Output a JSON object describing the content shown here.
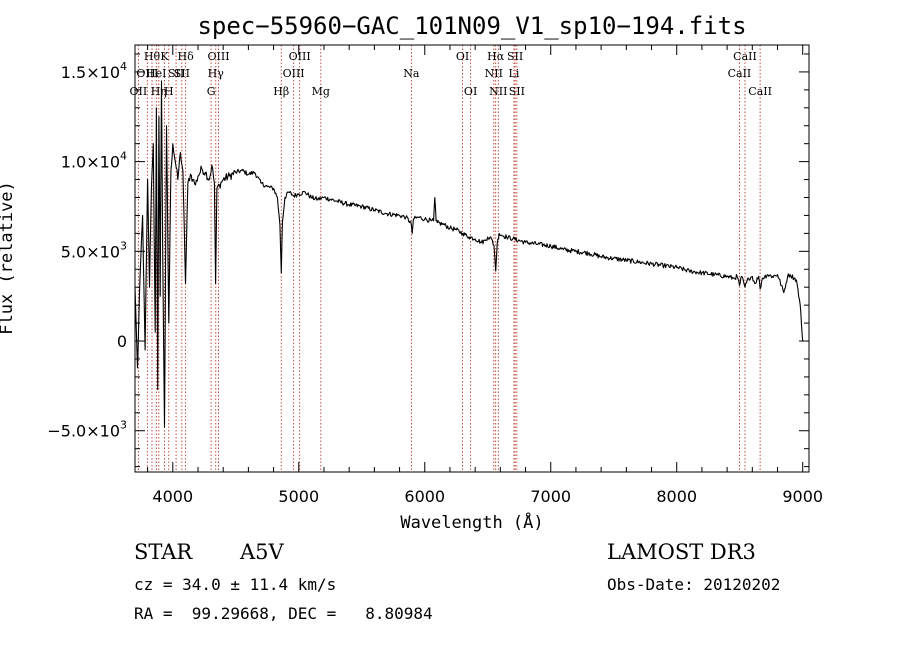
{
  "chart_data": {
    "type": "line",
    "title": "spec−55960−GAC_101N09_V1_sp10−194.fits",
    "xlabel": "Wavelength (Å)",
    "ylabel": "Flux (relative)",
    "xlim": [
      3700,
      9050
    ],
    "ylim": [
      -7300,
      16500
    ],
    "xticks": [
      {
        "value": 4000,
        "label": "4000"
      },
      {
        "value": 5000,
        "label": "5000"
      },
      {
        "value": 6000,
        "label": "6000"
      },
      {
        "value": 7000,
        "label": "7000"
      },
      {
        "value": 8000,
        "label": "8000"
      },
      {
        "value": 9000,
        "label": "9000"
      }
    ],
    "yticks": [
      {
        "value": 15000,
        "mant": "1.5×10",
        "exp": "4"
      },
      {
        "value": 10000,
        "mant": "1.0×10",
        "exp": "4"
      },
      {
        "value": 5000,
        "mant": "5.0×10",
        "exp": "3"
      },
      {
        "value": 0,
        "mant": "0",
        "exp": ""
      },
      {
        "value": -5000,
        "mant": "−5.0×10",
        "exp": "3"
      }
    ],
    "x_minor_step": 200,
    "y_minor_step": 1000,
    "spectrum": {
      "name": "flux",
      "x": [
        3700,
        3720,
        3740,
        3760,
        3780,
        3800,
        3815,
        3830,
        3845,
        3860,
        3870,
        3880,
        3890,
        3900,
        3910,
        3920,
        3934,
        3950,
        3968,
        3985,
        4000,
        4020,
        4040,
        4060,
        4080,
        4101,
        4120,
        4140,
        4160,
        4180,
        4200,
        4230,
        4260,
        4290,
        4310,
        4330,
        4340,
        4350,
        4370,
        4400,
        4450,
        4500,
        4550,
        4600,
        4650,
        4700,
        4750,
        4800,
        4830,
        4850,
        4861,
        4870,
        4890,
        4920,
        4960,
        5000,
        5050,
        5100,
        5150,
        5200,
        5300,
        5400,
        5500,
        5600,
        5700,
        5800,
        5850,
        5890,
        5900,
        5910,
        5950,
        6000,
        6050,
        6070,
        6080,
        6090,
        6100,
        6150,
        6200,
        6250,
        6300,
        6350,
        6400,
        6450,
        6480,
        6500,
        6530,
        6550,
        6563,
        6575,
        6590,
        6610,
        6650,
        6700,
        6800,
        6900,
        7000,
        7100,
        7200,
        7300,
        7400,
        7500,
        7600,
        7700,
        7800,
        7900,
        8000,
        8100,
        8200,
        8300,
        8400,
        8450,
        8480,
        8498,
        8515,
        8542,
        8570,
        8600,
        8620,
        8650,
        8662,
        8680,
        8720,
        8760,
        8800,
        8850,
        8880,
        8900,
        8950,
        8980,
        8990,
        9000
      ],
      "y": [
        3000,
        -1500,
        3500,
        7000,
        -500,
        9000,
        3000,
        8500,
        11000,
        500,
        13000,
        -2700,
        12500,
        2500,
        14500,
        5000,
        -4800,
        12000,
        1000,
        9500,
        11000,
        10000,
        9000,
        10500,
        9500,
        3200,
        8800,
        9300,
        9000,
        8700,
        9200,
        9600,
        9400,
        9000,
        9800,
        8800,
        3200,
        8500,
        8700,
        9000,
        9200,
        9400,
        9500,
        9300,
        9400,
        8800,
        8600,
        8500,
        8000,
        6500,
        3800,
        6600,
        8000,
        8300,
        8100,
        8200,
        8300,
        8000,
        7900,
        8000,
        7800,
        7600,
        7500,
        7300,
        7100,
        7000,
        6900,
        6600,
        6000,
        6800,
        6900,
        6800,
        6700,
        6700,
        8000,
        6700,
        6600,
        6500,
        6300,
        6200,
        6000,
        5800,
        5700,
        5500,
        5600,
        5800,
        5700,
        5300,
        3900,
        5400,
        6000,
        5900,
        5800,
        5700,
        5500,
        5400,
        5300,
        5100,
        5000,
        4900,
        4700,
        4600,
        4500,
        4400,
        4300,
        4200,
        4100,
        3900,
        3800,
        3700,
        3600,
        3500,
        3600,
        3100,
        3600,
        3000,
        3500,
        3600,
        3200,
        3600,
        2900,
        3500,
        3700,
        3600,
        3700,
        2700,
        3600,
        3700,
        3400,
        2000,
        1000,
        0
      ]
    },
    "lines": [
      {
        "wave": 3727,
        "label": "OII",
        "row": 2
      },
      {
        "wave": 3798,
        "label": "OIII",
        "row": 1
      },
      {
        "wave": 3835,
        "label": "Hθ",
        "row": 0
      },
      {
        "wave": 3869,
        "label": "HeI",
        "row": 1
      },
      {
        "wave": 3889,
        "label": "Hη",
        "row": 2
      },
      {
        "wave": 3934,
        "label": "K",
        "row": 0
      },
      {
        "wave": 3968,
        "label": "H",
        "row": 2
      },
      {
        "wave": 4026,
        "label": "SII",
        "row": 1
      },
      {
        "wave": 4072,
        "label": "SII",
        "row": 1
      },
      {
        "wave": 4102,
        "label": "Hδ",
        "row": 0
      },
      {
        "wave": 4304,
        "label": "G",
        "row": 2
      },
      {
        "wave": 4341,
        "label": "Hγ",
        "row": 1
      },
      {
        "wave": 4363,
        "label": "OIII",
        "row": 0
      },
      {
        "wave": 4861,
        "label": "Hβ",
        "row": 2
      },
      {
        "wave": 4959,
        "label": "OIII",
        "row": 1
      },
      {
        "wave": 5007,
        "label": "OIII",
        "row": 0
      },
      {
        "wave": 5175,
        "label": "Mg",
        "row": 2
      },
      {
        "wave": 5894,
        "label": "Na",
        "row": 1
      },
      {
        "wave": 6300,
        "label": "OI",
        "row": 0
      },
      {
        "wave": 6364,
        "label": "OI",
        "row": 2
      },
      {
        "wave": 6548,
        "label": "NII",
        "row": 1
      },
      {
        "wave": 6563,
        "label": "Hα",
        "row": 0
      },
      {
        "wave": 6584,
        "label": "NII",
        "row": 2
      },
      {
        "wave": 6708,
        "label": "Li",
        "row": 1
      },
      {
        "wave": 6717,
        "label": "SII",
        "row": 0
      },
      {
        "wave": 6731,
        "label": "SII",
        "row": 2
      },
      {
        "wave": 8498,
        "label": "CaII",
        "row": 1
      },
      {
        "wave": 8542,
        "label": "CaII",
        "row": 0
      },
      {
        "wave": 8662,
        "label": "CaII",
        "row": 2
      }
    ],
    "colors": {
      "spectrum": "#000000",
      "lines": "#c0392b",
      "axes": "#000000"
    }
  },
  "info": {
    "class_label": "STAR",
    "subclass": "A5V",
    "survey": "LAMOST DR3",
    "cz": "cz = 34.0 ± 11.4 km/s",
    "obs_date": "Obs-Date: 20120202",
    "coords": "RA =  99.29668, DEC =   8.80984"
  }
}
